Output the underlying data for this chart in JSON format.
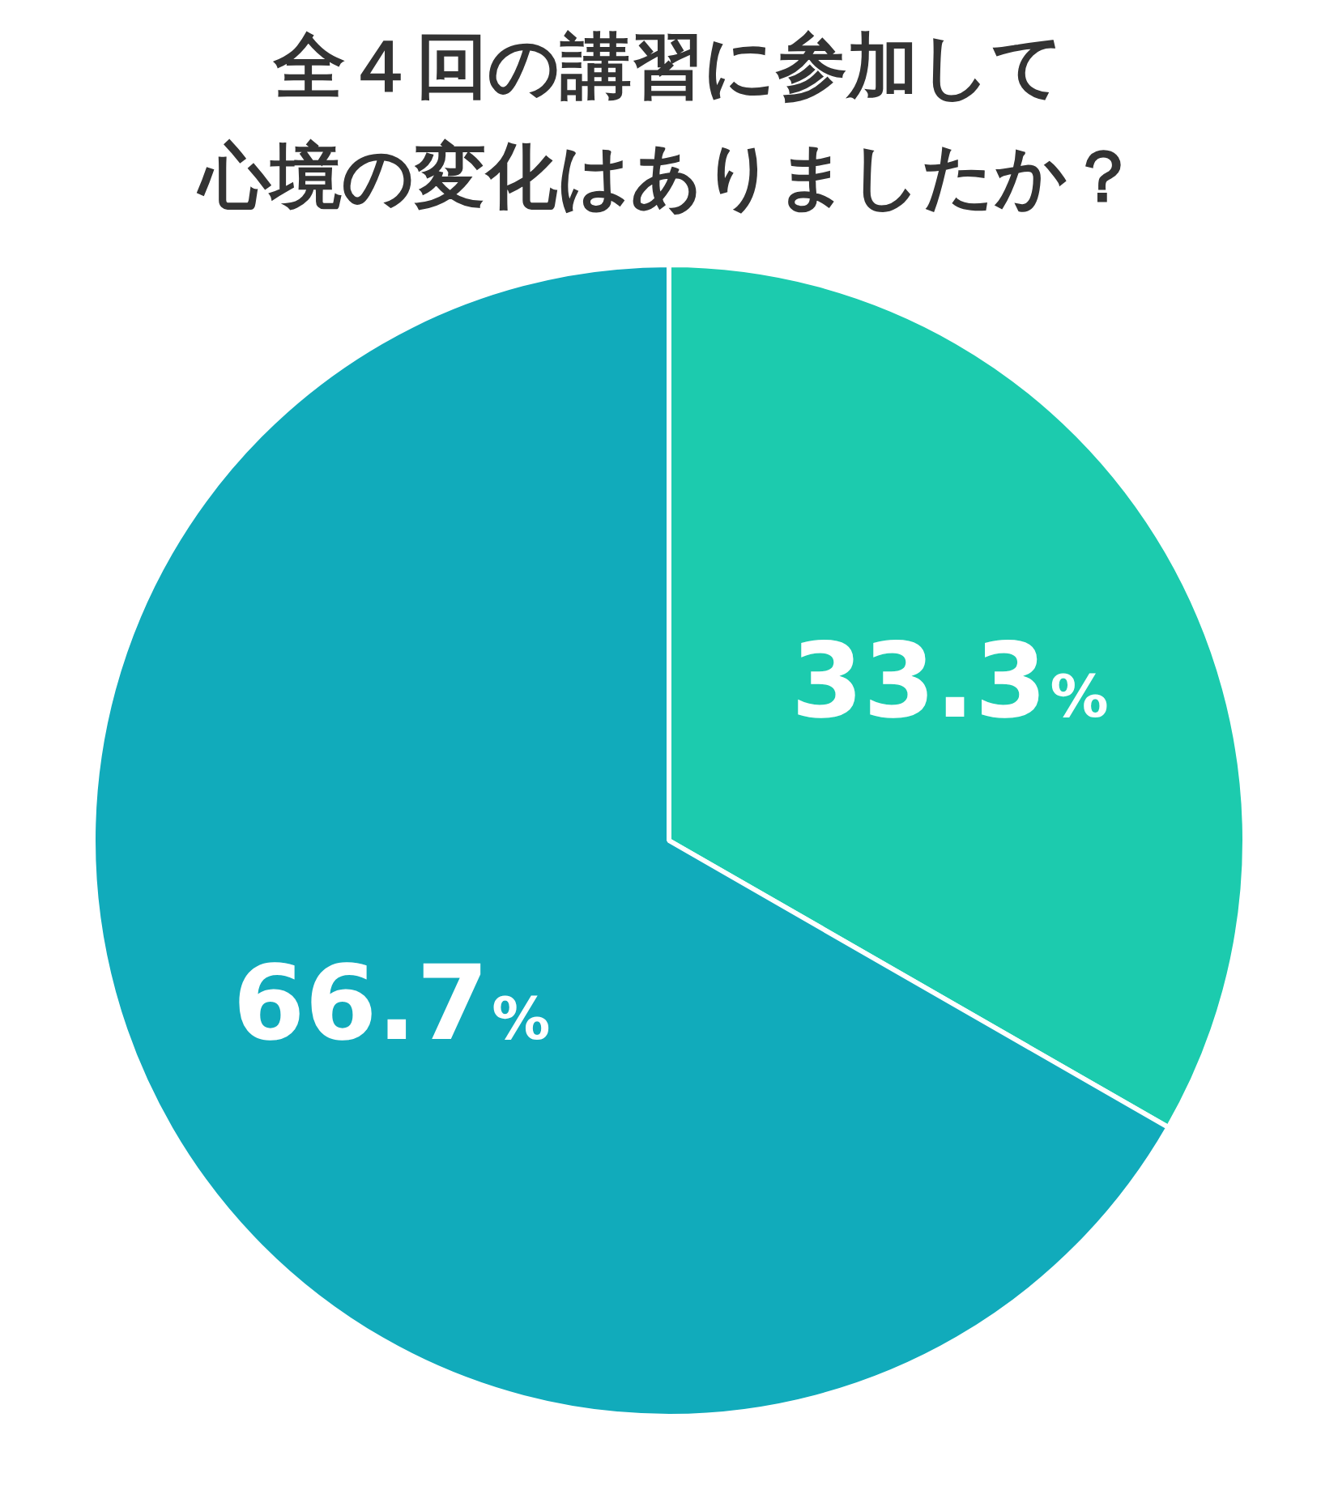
{
  "chart_data": {
    "type": "pie",
    "title": "全４回の講習に参加して",
    "subtitle": "心境の変化はありましたか？",
    "categories": [
      null,
      null
    ],
    "values": [
      33.3,
      66.7
    ],
    "colors": [
      "#1ccbae",
      "#11abbb"
    ],
    "value_labels": [
      "33.3%",
      "66.7%"
    ],
    "legend": false
  }
}
